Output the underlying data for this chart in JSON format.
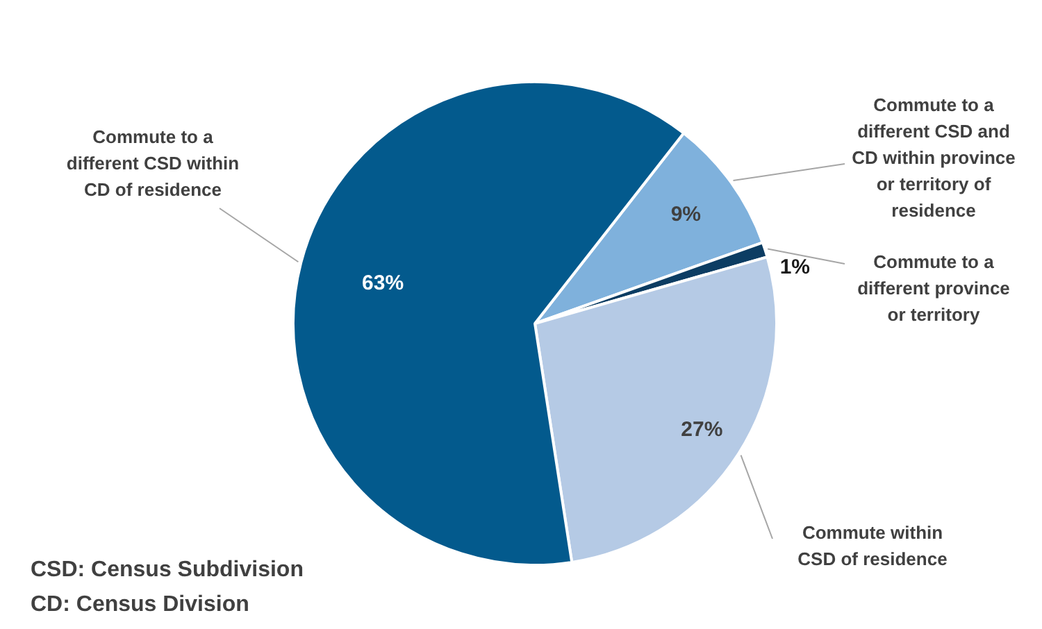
{
  "chart_data": {
    "type": "pie",
    "categories": [
      "Commute to a different CSD and CD within province or territory of residence",
      "Commute to a different province or territory",
      "Commute within CSD of residence",
      "Commute to a different CSD within CD of residence"
    ],
    "values": [
      9,
      1,
      27,
      63
    ],
    "colors": [
      "#7fb1dc",
      "#0c3d63",
      "#b5cae5",
      "#035a8d"
    ],
    "value_labels": [
      "9%",
      "1%",
      "27%",
      "63%"
    ],
    "legend": false,
    "annotations": [
      "CSD: Census Subdivision",
      "CD: Census Division"
    ]
  }
}
